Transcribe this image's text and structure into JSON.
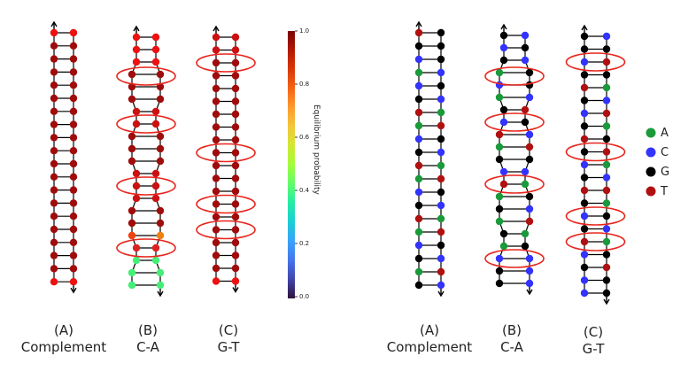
{
  "panels": [
    {
      "id": "probability",
      "strands": [
        {
          "letter": "(A)",
          "name": "Complement"
        },
        {
          "letter": "(B)",
          "name": "C-A"
        },
        {
          "letter": "(C)",
          "name": "G-T"
        }
      ]
    },
    {
      "id": "bases",
      "strands": [
        {
          "letter": "(A)",
          "name": "Complement"
        },
        {
          "letter": "(B)",
          "name": "C-A"
        },
        {
          "letter": "(C)",
          "name": "G-T"
        }
      ]
    }
  ],
  "colorbar": {
    "title": "Equilibrium probability",
    "ticks": [
      "1.0",
      "0.8",
      "0.6",
      "0.4",
      "0.2",
      "0.0"
    ],
    "colormap": [
      "#30123b",
      "#4145ab",
      "#4675ed",
      "#39a2fc",
      "#1bcfd4",
      "#24eca6",
      "#61fc6c",
      "#a4fc3b",
      "#d1e834",
      "#f3c63a",
      "#fe9b2d",
      "#f36315",
      "#d93806",
      "#b11901",
      "#7a0403"
    ]
  },
  "legend": [
    {
      "label": "A",
      "color": "#1a9a3a"
    },
    {
      "label": "C",
      "color": "#3333ff"
    },
    {
      "label": "G",
      "color": "#000000"
    },
    {
      "label": "T",
      "color": "#b01010"
    }
  ],
  "mismatch_marker_color": "#e8261e"
}
